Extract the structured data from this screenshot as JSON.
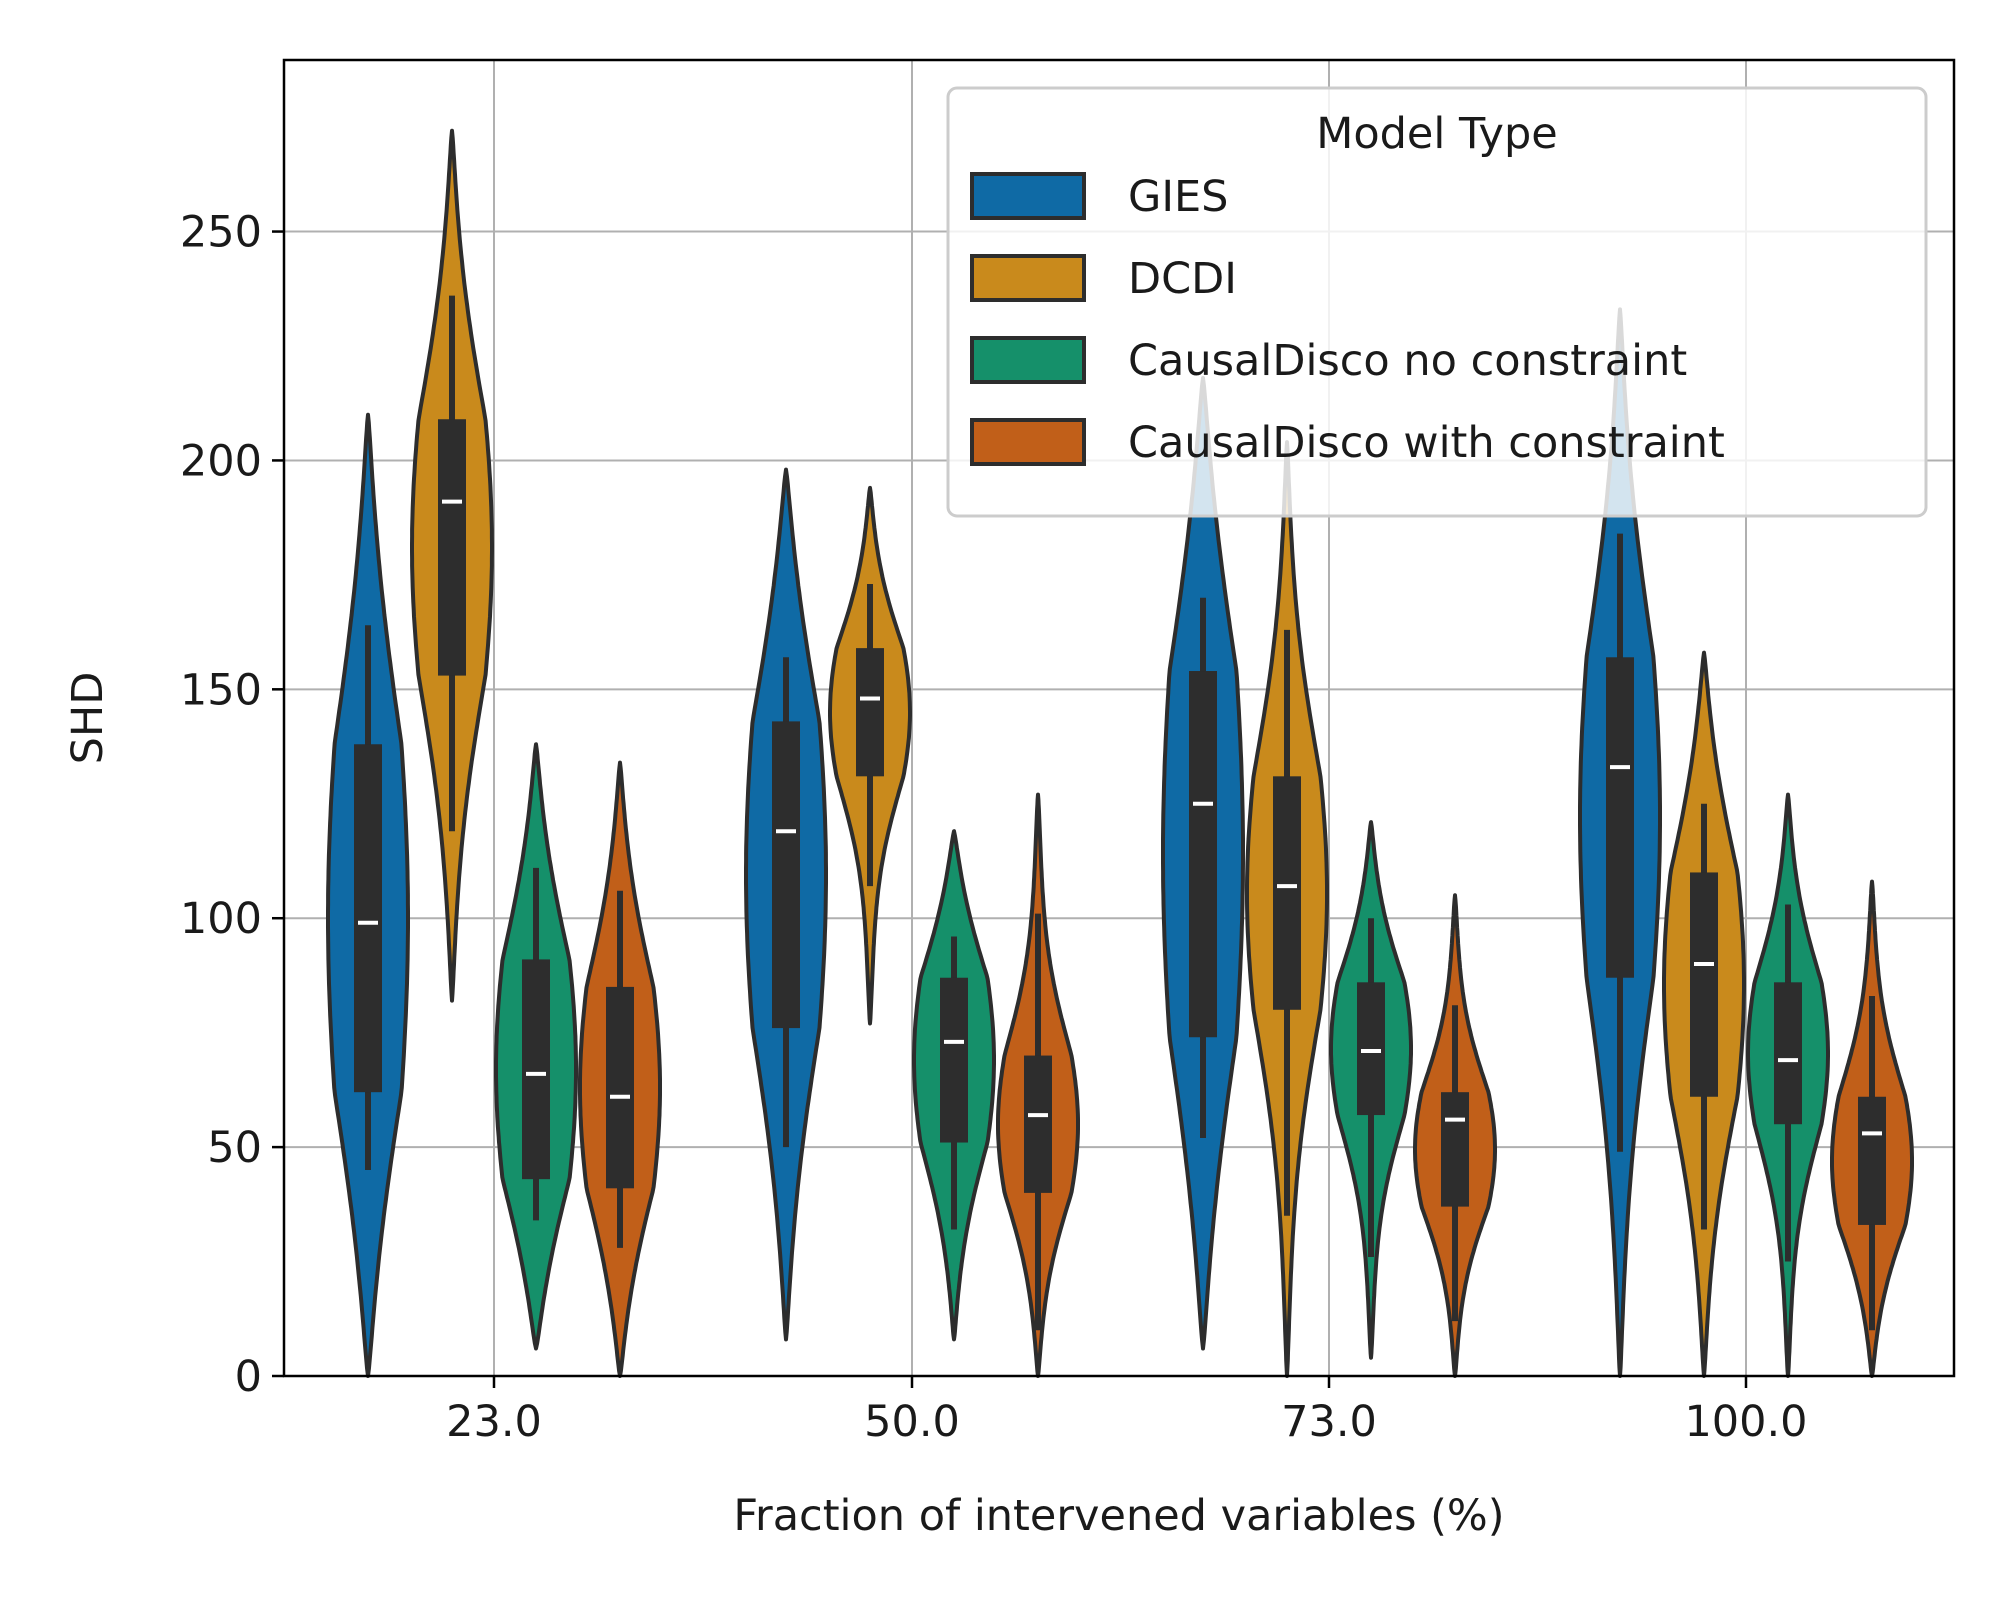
{
  "chart_data": {
    "type": "violin",
    "xlabel": "Fraction of intervened variables (%)",
    "ylabel": "SHD",
    "categories": [
      "23.0",
      "50.0",
      "73.0",
      "100.0"
    ],
    "ylim": [
      0,
      288
    ],
    "yticks": [
      0,
      50,
      100,
      150,
      200,
      250
    ],
    "grid": true,
    "legend": {
      "title": "Model Type",
      "placement": "top-right"
    },
    "series": [
      {
        "name": "GIES",
        "color": "#0f6aa5",
        "violins": [
          {
            "min": 0,
            "max": 210,
            "q1": 62,
            "median": 99,
            "q3": 138,
            "whisker_low": 45,
            "whisker_high": 164
          },
          {
            "min": 8,
            "max": 198,
            "q1": 76,
            "median": 119,
            "q3": 143,
            "whisker_low": 50,
            "whisker_high": 157
          },
          {
            "min": 6,
            "max": 218,
            "q1": 74,
            "median": 125,
            "q3": 154,
            "whisker_low": 52,
            "whisker_high": 170
          },
          {
            "min": 0,
            "max": 233,
            "q1": 87,
            "median": 133,
            "q3": 157,
            "whisker_low": 49,
            "whisker_high": 184
          }
        ]
      },
      {
        "name": "DCDI",
        "color": "#c98a1c",
        "violins": [
          {
            "min": 82,
            "max": 272,
            "q1": 153,
            "median": 191,
            "q3": 209,
            "whisker_low": 119,
            "whisker_high": 236
          },
          {
            "min": 77,
            "max": 194,
            "q1": 131,
            "median": 148,
            "q3": 159,
            "whisker_low": 107,
            "whisker_high": 173
          },
          {
            "min": 0,
            "max": 204,
            "q1": 80,
            "median": 107,
            "q3": 131,
            "whisker_low": 35,
            "whisker_high": 163
          },
          {
            "min": 0,
            "max": 158,
            "q1": 61,
            "median": 90,
            "q3": 110,
            "whisker_low": 32,
            "whisker_high": 125
          }
        ]
      },
      {
        "name": "CausalDisco no constraint",
        "color": "#15906a",
        "violins": [
          {
            "min": 6,
            "max": 138,
            "q1": 43,
            "median": 66,
            "q3": 91,
            "whisker_low": 34,
            "whisker_high": 111
          },
          {
            "min": 8,
            "max": 119,
            "q1": 51,
            "median": 73,
            "q3": 87,
            "whisker_low": 32,
            "whisker_high": 96
          },
          {
            "min": 4,
            "max": 121,
            "q1": 57,
            "median": 71,
            "q3": 86,
            "whisker_low": 26,
            "whisker_high": 100
          },
          {
            "min": 0,
            "max": 127,
            "q1": 55,
            "median": 69,
            "q3": 86,
            "whisker_low": 25,
            "whisker_high": 103
          }
        ]
      },
      {
        "name": "CausalDisco with constraint",
        "color": "#c15f19",
        "violins": [
          {
            "min": 0,
            "max": 134,
            "q1": 41,
            "median": 61,
            "q3": 85,
            "whisker_low": 28,
            "whisker_high": 106
          },
          {
            "min": 0,
            "max": 127,
            "q1": 40,
            "median": 57,
            "q3": 70,
            "whisker_low": 10,
            "whisker_high": 101
          },
          {
            "min": 0,
            "max": 105,
            "q1": 37,
            "median": 56,
            "q3": 62,
            "whisker_low": 12,
            "whisker_high": 81
          },
          {
            "min": 0,
            "max": 108,
            "q1": 33,
            "median": 53,
            "q3": 61,
            "whisker_low": 10,
            "whisker_high": 83
          }
        ]
      }
    ]
  }
}
